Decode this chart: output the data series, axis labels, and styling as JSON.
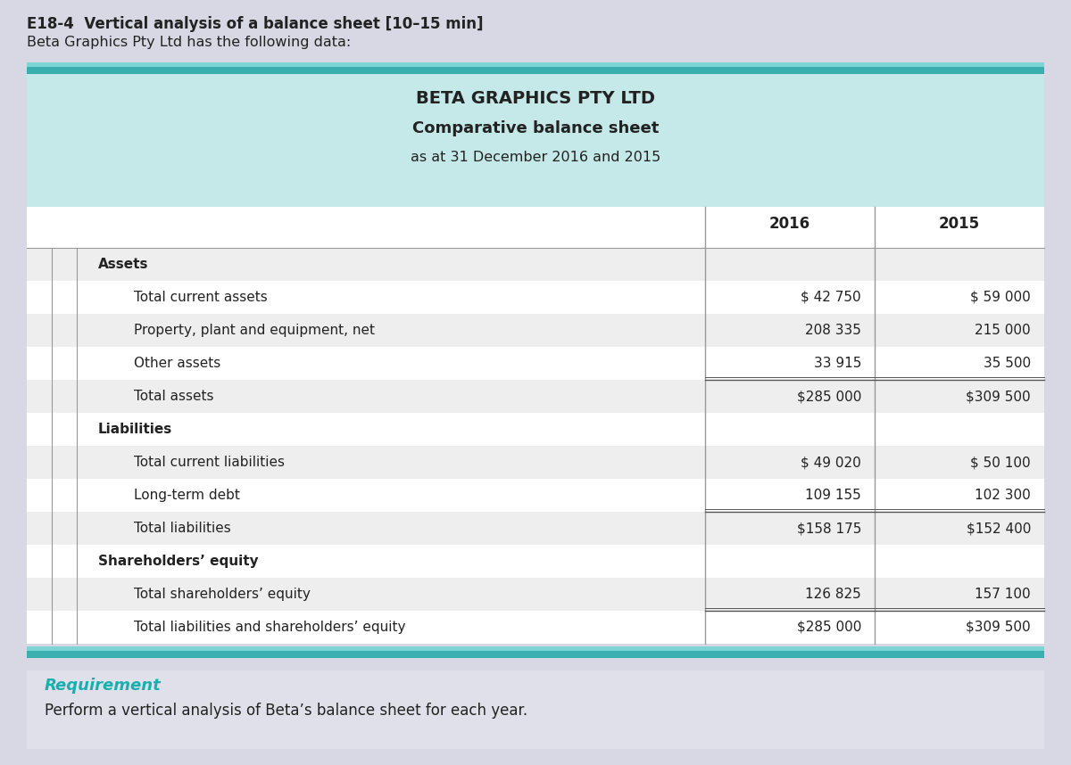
{
  "top_title_line1": "E18-4  Vertical analysis of a balance sheet [10–15 min]",
  "top_title_line2": "Beta Graphics Pty Ltd has the following data:",
  "company_name": "BETA GRAPHICS PTY LTD",
  "report_title": "Comparative balance sheet",
  "report_subtitle": "as at 31 December 2016 and 2015",
  "rows": [
    {
      "label": "Assets",
      "bold": true,
      "indent": false,
      "val2016": "",
      "val2015": "",
      "section_header": true,
      "total_line": false
    },
    {
      "label": "Total current assets",
      "bold": false,
      "indent": true,
      "val2016": "$ 42 750",
      "val2015": "$ 59 000",
      "section_header": false,
      "total_line": false
    },
    {
      "label": "Property, plant and equipment, net",
      "bold": false,
      "indent": true,
      "val2016": "208 335",
      "val2015": "215 000",
      "section_header": false,
      "total_line": false
    },
    {
      "label": "Other assets",
      "bold": false,
      "indent": true,
      "val2016": "33 915",
      "val2015": "35 500",
      "section_header": false,
      "total_line": false
    },
    {
      "label": "Total assets",
      "bold": false,
      "indent": true,
      "val2016": "$285 000",
      "val2015": "$309 500",
      "section_header": false,
      "total_line": true
    },
    {
      "label": "Liabilities",
      "bold": true,
      "indent": false,
      "val2016": "",
      "val2015": "",
      "section_header": true,
      "total_line": false
    },
    {
      "label": "Total current liabilities",
      "bold": false,
      "indent": true,
      "val2016": "$ 49 020",
      "val2015": "$ 50 100",
      "section_header": false,
      "total_line": false
    },
    {
      "label": "Long-term debt",
      "bold": false,
      "indent": true,
      "val2016": "109 155",
      "val2015": "102 300",
      "section_header": false,
      "total_line": false
    },
    {
      "label": "Total liabilities",
      "bold": false,
      "indent": true,
      "val2016": "$158 175",
      "val2015": "$152 400",
      "section_header": false,
      "total_line": true
    },
    {
      "label": "Shareholders’ equity",
      "bold": true,
      "indent": false,
      "val2016": "",
      "val2015": "",
      "section_header": true,
      "total_line": false
    },
    {
      "label": "Total shareholders’ equity",
      "bold": false,
      "indent": true,
      "val2016": "126 825",
      "val2015": "157 100",
      "section_header": false,
      "total_line": false
    },
    {
      "label": "Total liabilities and shareholders’ equity",
      "bold": false,
      "indent": true,
      "val2016": "$285 000",
      "val2015": "$309 500",
      "section_header": false,
      "total_line": true
    }
  ],
  "requirement_title": "Requirement",
  "requirement_text": "Perform a vertical analysis of Beta’s balance sheet for each year.",
  "bg_outer": "#d8d8e4",
  "bg_table_header": "#c5e8e8",
  "bg_teal_dark": "#3aafaf",
  "bg_teal_light": "#7dd4d4",
  "bg_white": "#ffffff",
  "bg_light_gray": "#eeeeee",
  "bg_req": "#e0e0ea",
  "text_dark": "#222222",
  "text_teal": "#1aafaf",
  "col_line_color": "#999999",
  "total_line_color": "#555555"
}
